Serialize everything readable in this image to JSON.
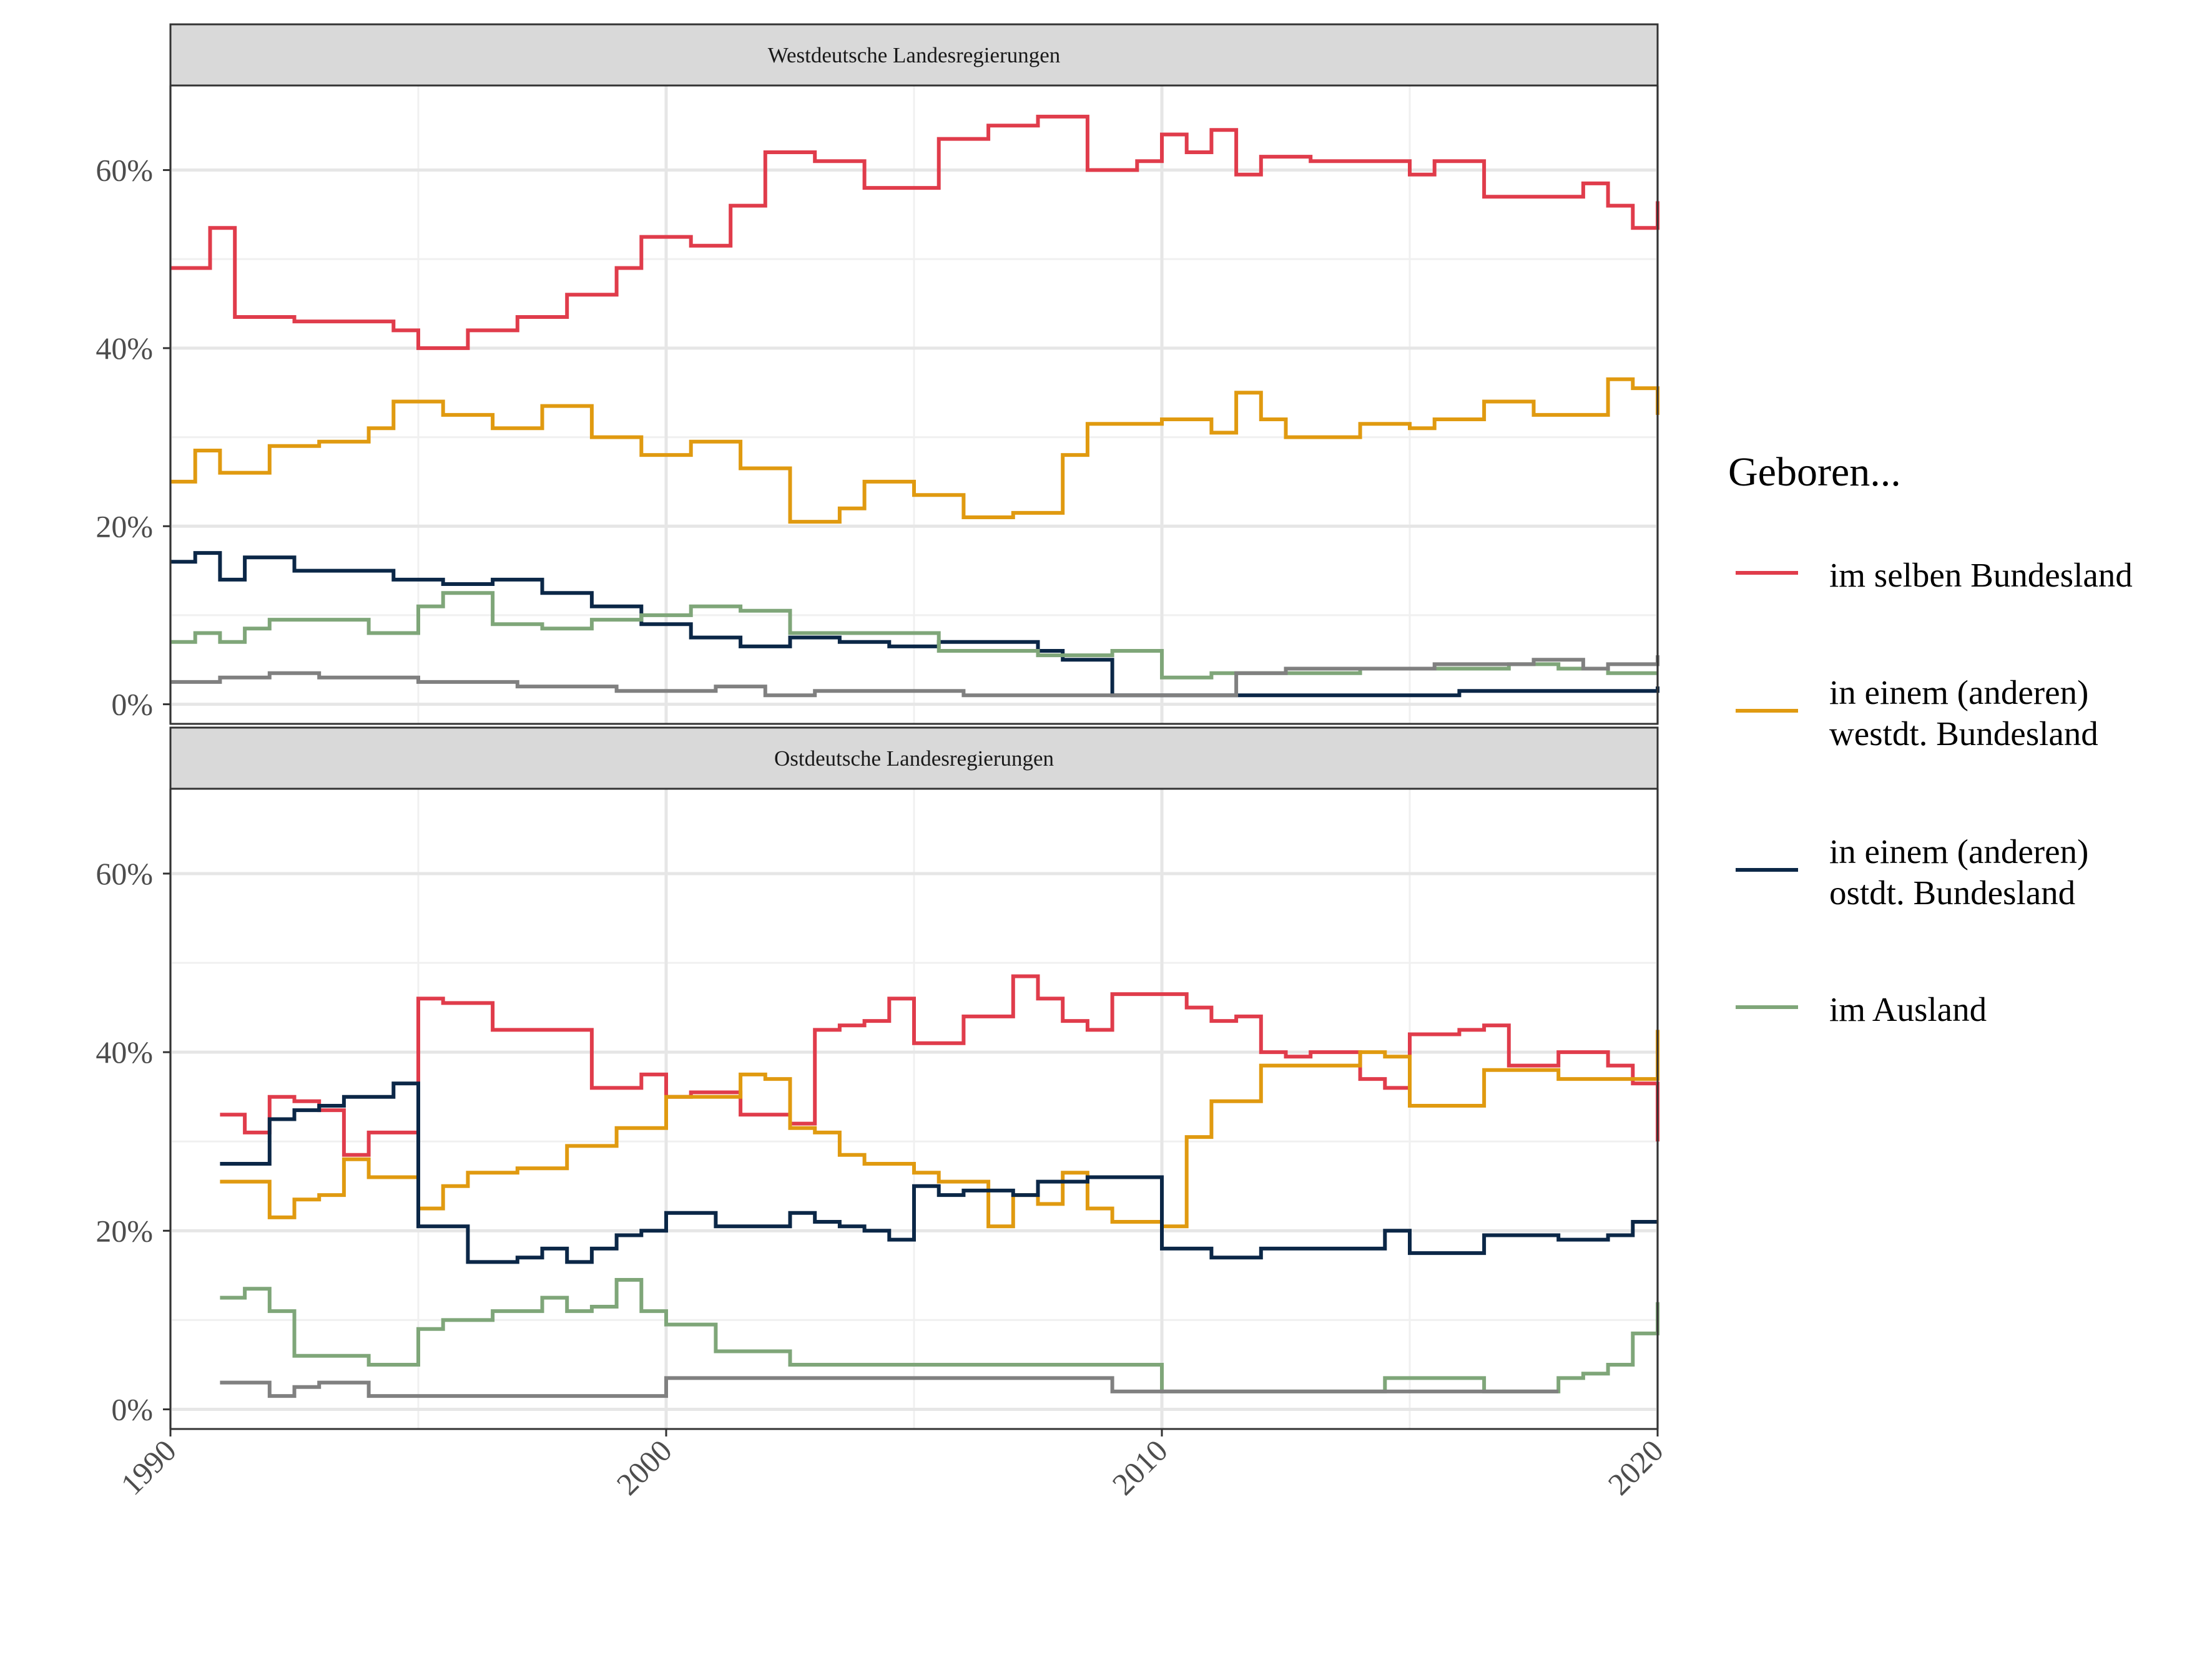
{
  "legend": {
    "title": "Geboren...",
    "entries": [
      {
        "key": "same",
        "lines": [
          "im selben Bundesland"
        ],
        "color": "#e03c4b"
      },
      {
        "key": "west",
        "lines": [
          "in einem (anderen)",
          "westdt. Bundesland"
        ],
        "color": "#e09a10"
      },
      {
        "key": "east",
        "lines": [
          "in einem (anderen)",
          "ostdt. Bundesland"
        ],
        "color": "#0b2747"
      },
      {
        "key": "abroad",
        "lines": [
          "im Ausland"
        ],
        "color": "#7fa679"
      }
    ]
  },
  "chart_data": [
    {
      "type": "line",
      "panel": "top",
      "title": "Westdeutsche Landesregierungen",
      "xlabel": "",
      "ylabel": "",
      "xlim": [
        1990,
        2020
      ],
      "ylim": [
        0,
        70
      ],
      "x_ticks": [
        "1990",
        "2000",
        "2010",
        "2020"
      ],
      "y_ticks": [
        "0%",
        "20%",
        "40%",
        "60%"
      ],
      "grid": true,
      "series": [
        {
          "key": "same",
          "name": "im selben Bundesland",
          "color": "#e03c4b",
          "x": [
            1990.0,
            1990.8,
            1991.3,
            1992.5,
            1993.5,
            1994.5,
            1995.0,
            1996.0,
            1997.0,
            1998.0,
            1999.0,
            1999.5,
            2000.5,
            2001.3,
            2002.0,
            2003.0,
            2004.0,
            2005.5,
            2006.5,
            2007.5,
            2008.5,
            2009.5,
            2010.0,
            2010.5,
            2011.0,
            2011.5,
            2012.0,
            2013.0,
            2014.0,
            2015.0,
            2015.5,
            2016.5,
            2017.5,
            2018.5,
            2019.0,
            2019.5,
            2020.0
          ],
          "values": [
            49,
            53.5,
            43.5,
            43,
            43,
            42,
            40,
            42,
            43.5,
            46,
            49,
            52.5,
            51.5,
            56,
            62,
            61,
            58,
            63.5,
            65,
            66,
            60,
            61,
            64,
            62,
            64.5,
            59.5,
            61.5,
            61,
            61,
            59.5,
            61,
            57,
            57,
            58.5,
            56,
            53.5,
            56.5
          ]
        },
        {
          "key": "west",
          "name": "in einem (anderen) westdt. Bundesland",
          "color": "#e09a10",
          "x": [
            1990.0,
            1990.5,
            1991.0,
            1992.0,
            1993.0,
            1994.0,
            1994.5,
            1995.5,
            1996.5,
            1997.5,
            1998.5,
            1999.5,
            2000.5,
            2001.5,
            2002.5,
            2003.5,
            2004.0,
            2005.0,
            2006.0,
            2007.0,
            2008.0,
            2008.5,
            2009.0,
            2010.0,
            2011.0,
            2011.5,
            2012.0,
            2012.5,
            2013.0,
            2014.0,
            2015.0,
            2015.5,
            2016.5,
            2017.5,
            2018.5,
            2019.0,
            2019.5,
            2020.0
          ],
          "values": [
            25,
            28.5,
            26,
            29,
            29.5,
            31,
            34,
            32.5,
            31,
            33.5,
            30,
            28,
            29.5,
            26.5,
            20.5,
            22,
            25,
            23.5,
            21,
            21.5,
            28,
            31.5,
            31.5,
            32,
            30.5,
            35,
            32,
            30,
            30,
            31.5,
            31,
            32,
            34,
            32.5,
            32.5,
            36.5,
            35.5,
            32.5
          ]
        },
        {
          "key": "east",
          "name": "in einem (anderen) ostdt. Bundesland",
          "color": "#0b2747",
          "x": [
            1990.0,
            1990.5,
            1991.0,
            1991.5,
            1992.5,
            1993.5,
            1994.5,
            1995.5,
            1996.5,
            1997.5,
            1998.5,
            1999.5,
            2000.5,
            2001.5,
            2002.5,
            2003.5,
            2004.5,
            2005.5,
            2006.5,
            2007.0,
            2007.5,
            2008.0,
            2009.0,
            2010.0,
            2011.0,
            2012.0,
            2014.0,
            2016.0,
            2017.0,
            2018.0,
            2019.0,
            2020.0
          ],
          "values": [
            16,
            17,
            14,
            16.5,
            15,
            15,
            14,
            13.5,
            14,
            12.5,
            11,
            9,
            7.5,
            6.5,
            7.5,
            7,
            6.5,
            7,
            7,
            7,
            6,
            5,
            1,
            1,
            1,
            1,
            1,
            1.5,
            1.5,
            1.5,
            1.5,
            2
          ]
        },
        {
          "key": "abroad",
          "name": "im Ausland",
          "color": "#7fa679",
          "x": [
            1990.0,
            1990.5,
            1991.0,
            1991.5,
            1992.0,
            1993.0,
            1994.0,
            1995.0,
            1995.5,
            1996.5,
            1997.5,
            1998.5,
            1999.5,
            2000.5,
            2001.5,
            2002.5,
            2003.5,
            2004.5,
            2005.5,
            2006.5,
            2007.5,
            2008.5,
            2009.0,
            2010.0,
            2011.0,
            2012.0,
            2013.0,
            2014.0,
            2015.0,
            2016.0,
            2017.0,
            2018.0,
            2019.0,
            2020.0
          ],
          "values": [
            7,
            8,
            7,
            8.5,
            9.5,
            9.5,
            8,
            11,
            12.5,
            9,
            8.5,
            9.5,
            10,
            11,
            10.5,
            8,
            8,
            8,
            6,
            6,
            5.5,
            5.5,
            6,
            3,
            3.5,
            3.5,
            3.5,
            4,
            4,
            4,
            4.5,
            4,
            3.5,
            3.5
          ]
        },
        {
          "key": "other",
          "name": "",
          "color": "#808080",
          "x": [
            1990.0,
            1991.0,
            1992.0,
            1993.0,
            1994.0,
            1995.0,
            1996.0,
            1997.0,
            1998.0,
            1999.0,
            2000.0,
            2001.0,
            2002.0,
            2003.0,
            2004.0,
            2005.0,
            2006.0,
            2007.0,
            2008.0,
            2009.0,
            2010.0,
            2011.0,
            2011.5,
            2012.5,
            2013.5,
            2014.5,
            2015.5,
            2016.5,
            2017.5,
            2018.5,
            2019.0,
            2020.0
          ],
          "values": [
            2.5,
            3,
            3.5,
            3,
            3,
            2.5,
            2.5,
            2,
            2,
            1.5,
            1.5,
            2,
            1,
            1.5,
            1.5,
            1.5,
            1,
            1,
            1,
            1,
            1,
            1,
            3.5,
            4,
            4,
            4,
            4.5,
            4.5,
            5,
            4,
            4.5,
            5.5
          ]
        }
      ]
    },
    {
      "type": "line",
      "panel": "bottom",
      "title": "Ostdeutsche Landesregierungen",
      "xlabel": "",
      "ylabel": "",
      "xlim": [
        1990,
        2020
      ],
      "ylim": [
        0,
        70
      ],
      "x_ticks": [
        "1990",
        "2000",
        "2010",
        "2020"
      ],
      "y_ticks": [
        "0%",
        "20%",
        "40%",
        "60%"
      ],
      "grid": true,
      "series": [
        {
          "key": "same",
          "name": "im selben Bundesland",
          "color": "#e03c4b",
          "x": [
            1991.0,
            1991.5,
            1992.0,
            1992.5,
            1993.0,
            1993.5,
            1994.0,
            1994.5,
            1995.0,
            1995.5,
            1996.5,
            1997.5,
            1998.0,
            1998.5,
            1999.5,
            2000.0,
            2000.5,
            2001.5,
            2002.5,
            2003.0,
            2003.5,
            2004.0,
            2004.5,
            2005.0,
            2005.5,
            2006.0,
            2006.5,
            2007.0,
            2007.5,
            2008.0,
            2008.5,
            2009.0,
            2009.5,
            2010.0,
            2010.5,
            2011.0,
            2011.5,
            2012.0,
            2012.5,
            2013.0,
            2013.5,
            2014.0,
            2014.5,
            2015.0,
            2016.0,
            2016.5,
            2017.0,
            2018.0,
            2019.0,
            2019.5,
            2020.0
          ],
          "values": [
            33,
            31,
            35,
            34.5,
            33.5,
            28.5,
            31,
            31,
            46,
            45.5,
            42.5,
            42.5,
            42.5,
            36,
            37.5,
            35,
            35.5,
            33,
            32,
            42.5,
            43,
            43.5,
            46,
            41,
            41,
            44,
            44,
            48.5,
            46,
            43.5,
            42.5,
            46.5,
            46.5,
            46.5,
            45,
            43.5,
            44,
            40,
            39.5,
            40,
            40,
            37,
            36,
            42,
            42.5,
            43,
            38.5,
            40,
            38.5,
            36.5,
            30
          ]
        },
        {
          "key": "west",
          "name": "in einem (anderen) westdt. Bundesland",
          "color": "#e09a10",
          "x": [
            1991.0,
            1991.5,
            1992.0,
            1992.5,
            1993.0,
            1993.5,
            1994.0,
            1994.5,
            1995.0,
            1995.5,
            1996.0,
            1997.0,
            1998.0,
            1999.0,
            2000.0,
            2001.0,
            2001.5,
            2002.0,
            2002.5,
            2003.0,
            2003.5,
            2004.0,
            2005.0,
            2005.5,
            2006.0,
            2006.5,
            2007.0,
            2007.5,
            2008.0,
            2008.5,
            2009.0,
            2009.5,
            2010.0,
            2010.5,
            2011.0,
            2011.5,
            2012.0,
            2013.0,
            2014.0,
            2014.5,
            2015.0,
            2016.0,
            2016.5,
            2017.0,
            2018.0,
            2019.0,
            2019.5,
            2020.0
          ],
          "values": [
            25.5,
            25.5,
            21.5,
            23.5,
            24,
            28,
            26,
            26,
            22.5,
            25,
            26.5,
            27,
            29.5,
            31.5,
            35,
            35,
            37.5,
            37,
            31.5,
            31,
            28.5,
            27.5,
            26.5,
            25.5,
            25.5,
            20.5,
            24,
            23,
            26.5,
            22.5,
            21,
            21,
            20.5,
            30.5,
            34.5,
            34.5,
            38.5,
            38.5,
            40,
            39.5,
            34,
            34,
            38,
            38,
            37,
            37,
            37,
            42.5
          ]
        },
        {
          "key": "east",
          "name": "in einem (anderen) ostdt. Bundesland",
          "color": "#0b2747",
          "x": [
            1991.0,
            1991.5,
            1992.0,
            1992.5,
            1993.0,
            1993.5,
            1994.0,
            1994.5,
            1995.0,
            1996.0,
            1997.0,
            1997.5,
            1998.0,
            1998.5,
            1999.0,
            1999.5,
            2000.0,
            2001.0,
            2001.5,
            2002.0,
            2002.5,
            2003.0,
            2003.5,
            2004.0,
            2004.5,
            2005.0,
            2005.5,
            2006.0,
            2007.0,
            2007.5,
            2008.0,
            2008.5,
            2009.0,
            2009.5,
            2010.0,
            2011.0,
            2012.0,
            2013.0,
            2014.0,
            2014.5,
            2015.0,
            2016.0,
            2016.5,
            2017.0,
            2018.0,
            2019.0,
            2019.5,
            2020.0
          ],
          "values": [
            27.5,
            27.5,
            32.5,
            33.5,
            34,
            35,
            35,
            36.5,
            20.5,
            16.5,
            17,
            18,
            16.5,
            18,
            19.5,
            20,
            22,
            20.5,
            20.5,
            20.5,
            22,
            21,
            20.5,
            20,
            19,
            25,
            24,
            24.5,
            24,
            25.5,
            25.5,
            26,
            26,
            26,
            18,
            17,
            18,
            18,
            18,
            20,
            17.5,
            17.5,
            19.5,
            19.5,
            19,
            19.5,
            21,
            21
          ]
        },
        {
          "key": "abroad",
          "name": "im Ausland",
          "color": "#7fa679",
          "x": [
            1991.0,
            1991.5,
            1992.0,
            1992.5,
            1993.0,
            1994.0,
            1994.5,
            1995.0,
            1995.5,
            1996.0,
            1996.5,
            1997.0,
            1997.5,
            1998.0,
            1998.5,
            1999.0,
            1999.5,
            2000.0,
            2001.0,
            2002.0,
            2002.5,
            2003.0,
            2004.0,
            2005.0,
            2006.0,
            2007.0,
            2008.0,
            2009.0,
            2009.5,
            2010.0,
            2011.0,
            2012.0,
            2013.0,
            2014.0,
            2014.5,
            2015.0,
            2016.0,
            2016.5,
            2017.0,
            2017.5,
            2018.0,
            2018.5,
            2019.0,
            2019.5,
            2020.0
          ],
          "values": [
            12.5,
            13.5,
            11,
            6,
            6,
            5,
            5,
            9,
            10,
            10,
            11,
            11,
            12.5,
            11,
            11.5,
            14.5,
            11,
            9.5,
            6.5,
            6.5,
            5,
            5,
            5,
            5,
            5,
            5,
            5,
            5,
            5,
            2,
            2,
            2,
            2,
            2,
            3.5,
            3.5,
            3.5,
            2,
            2,
            2,
            3.5,
            4,
            5,
            8.5,
            12
          ]
        },
        {
          "key": "other",
          "name": "",
          "color": "#808080",
          "x": [
            1991.0,
            1991.5,
            1992.0,
            1992.5,
            1993.0,
            1994.0,
            1995.0,
            1996.0,
            1997.0,
            1998.0,
            1999.0,
            2000.0,
            2001.0,
            2002.0,
            2003.0,
            2004.0,
            2005.0,
            2006.0,
            2007.0,
            2008.0,
            2009.0,
            2010.0,
            2011.0,
            2012.0,
            2013.0,
            2014.0,
            2015.0,
            2016.0,
            2017.0,
            2018.0
          ],
          "values": [
            3,
            3,
            1.5,
            2.5,
            3,
            1.5,
            1.5,
            1.5,
            1.5,
            1.5,
            1.5,
            3.5,
            3.5,
            3.5,
            3.5,
            3.5,
            3.5,
            3.5,
            3.5,
            3.5,
            2,
            2,
            2,
            2,
            2,
            2,
            2,
            2,
            2,
            2
          ]
        }
      ]
    }
  ]
}
